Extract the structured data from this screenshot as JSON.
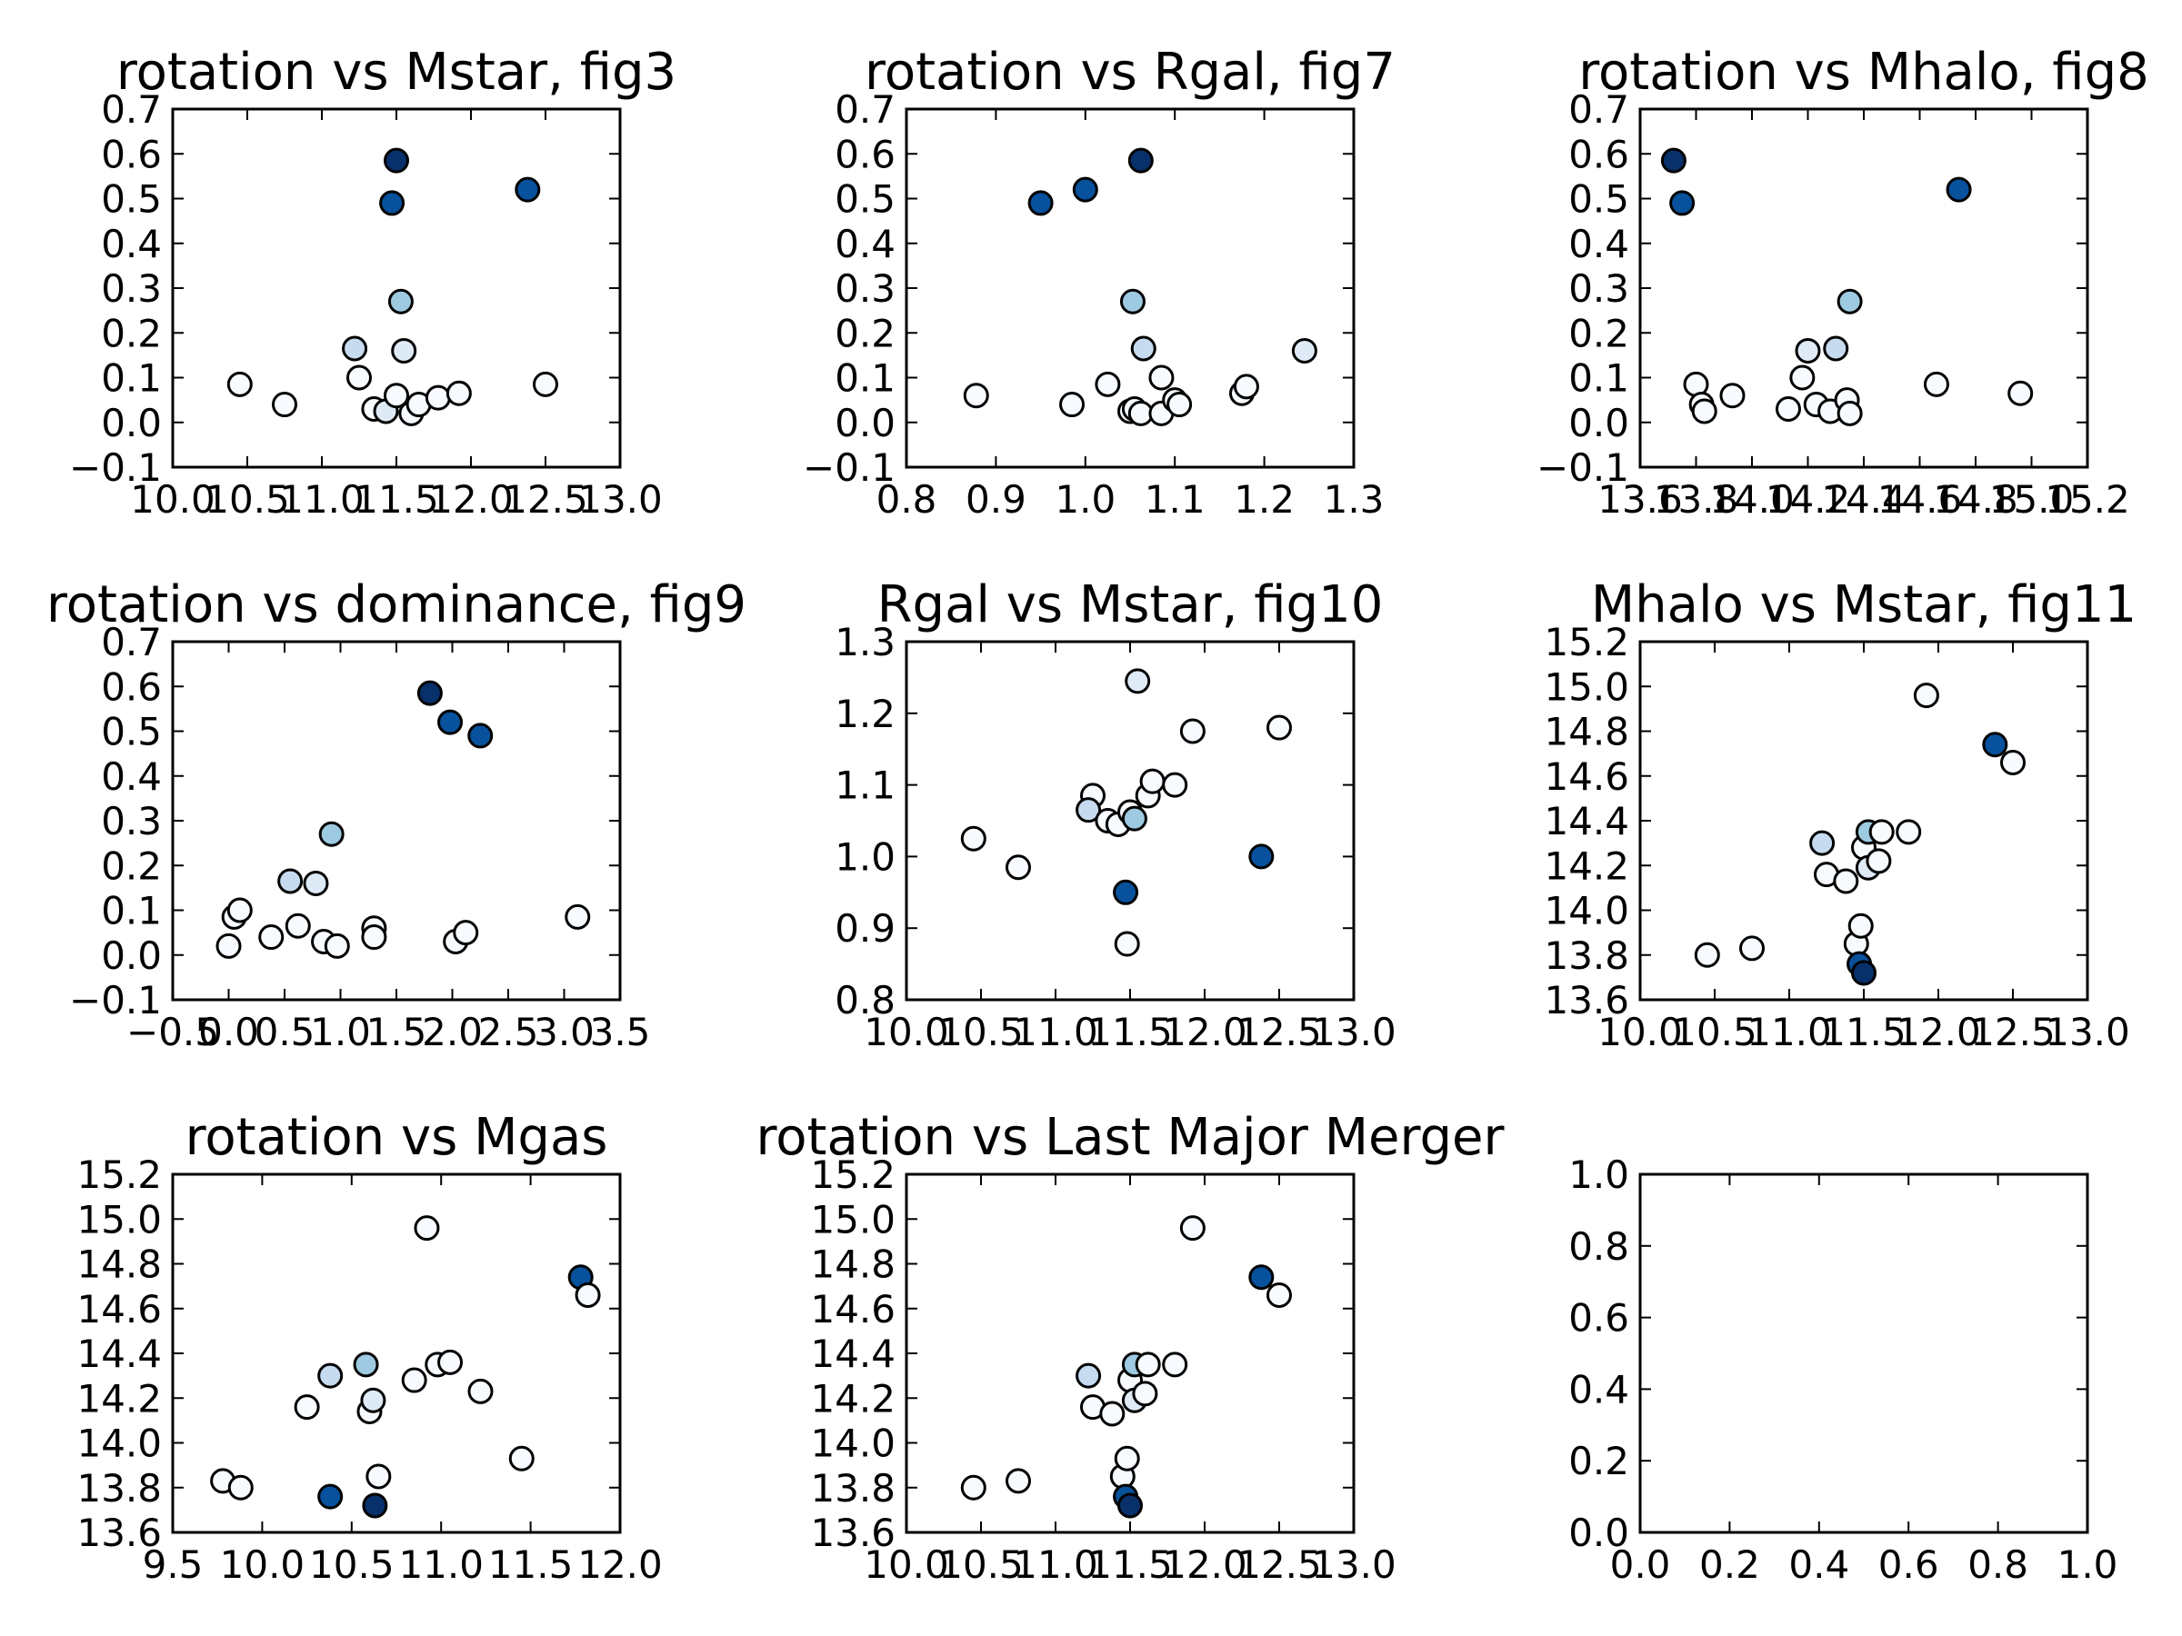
{
  "figure": {
    "background": "#ffffff",
    "marker_edge": "#000000",
    "colormap": [
      "#f7fbff",
      "#deebf7",
      "#c6dbef",
      "#9ecae1",
      "#6baed6",
      "#4292c6",
      "#2171b5",
      "#08519c",
      "#08306b"
    ]
  },
  "chart_data": [
    {
      "type": "scatter",
      "title": "rotation vs Mstar, fig3",
      "xlim": [
        10.0,
        13.0
      ],
      "ylim": [
        -0.1,
        0.7
      ],
      "xticks": [
        "10.0",
        "10.5",
        "11.0",
        "11.5",
        "12.0",
        "12.5",
        "13.0"
      ],
      "yticks": [
        "−0.1",
        "0.0",
        "0.1",
        "0.2",
        "0.3",
        "0.4",
        "0.5",
        "0.6",
        "0.7"
      ],
      "points": [
        {
          "x": 10.45,
          "y": 0.085,
          "c": 0.0
        },
        {
          "x": 10.75,
          "y": 0.04,
          "c": 0.05
        },
        {
          "x": 11.22,
          "y": 0.165,
          "c": 0.22
        },
        {
          "x": 11.25,
          "y": 0.1,
          "c": 0.05
        },
        {
          "x": 11.35,
          "y": 0.03,
          "c": 0.05
        },
        {
          "x": 11.43,
          "y": 0.025,
          "c": 0.1
        },
        {
          "x": 11.5,
          "y": 0.06,
          "c": 0.05
        },
        {
          "x": 11.55,
          "y": 0.16,
          "c": 0.15
        },
        {
          "x": 11.6,
          "y": 0.02,
          "c": 0.05
        },
        {
          "x": 11.65,
          "y": 0.04,
          "c": 0.05
        },
        {
          "x": 11.78,
          "y": 0.055,
          "c": 0.05
        },
        {
          "x": 11.92,
          "y": 0.065,
          "c": 0.05
        },
        {
          "x": 11.53,
          "y": 0.27,
          "c": 0.4
        },
        {
          "x": 11.47,
          "y": 0.49,
          "c": 0.82
        },
        {
          "x": 11.5,
          "y": 0.585,
          "c": 1.0
        },
        {
          "x": 12.38,
          "y": 0.52,
          "c": 0.9
        },
        {
          "x": 12.5,
          "y": 0.085,
          "c": 0.0
        }
      ]
    },
    {
      "type": "scatter",
      "title": "rotation vs Rgal, fig7",
      "xlim": [
        0.8,
        1.3
      ],
      "ylim": [
        -0.1,
        0.7
      ],
      "xticks": [
        "0.8",
        "0.9",
        "1.0",
        "1.1",
        "1.2",
        "1.3"
      ],
      "yticks": [
        "−0.1",
        "0.0",
        "0.1",
        "0.2",
        "0.3",
        "0.4",
        "0.5",
        "0.6",
        "0.7"
      ],
      "points": [
        {
          "x": 0.878,
          "y": 0.06,
          "c": 0.0
        },
        {
          "x": 0.985,
          "y": 0.04,
          "c": 0.0
        },
        {
          "x": 1.025,
          "y": 0.085,
          "c": 0.05
        },
        {
          "x": 1.05,
          "y": 0.025,
          "c": 0.05
        },
        {
          "x": 1.055,
          "y": 0.03,
          "c": 0.05
        },
        {
          "x": 1.062,
          "y": 0.02,
          "c": 0.05
        },
        {
          "x": 1.065,
          "y": 0.165,
          "c": 0.22
        },
        {
          "x": 1.085,
          "y": 0.1,
          "c": 0.05
        },
        {
          "x": 1.085,
          "y": 0.02,
          "c": 0.05
        },
        {
          "x": 1.1,
          "y": 0.05,
          "c": 0.05
        },
        {
          "x": 1.105,
          "y": 0.04,
          "c": 0.05
        },
        {
          "x": 1.053,
          "y": 0.27,
          "c": 0.4
        },
        {
          "x": 1.175,
          "y": 0.065,
          "c": 0.05
        },
        {
          "x": 1.18,
          "y": 0.08,
          "c": 0.05
        },
        {
          "x": 1.245,
          "y": 0.16,
          "c": 0.15
        },
        {
          "x": 0.95,
          "y": 0.49,
          "c": 0.82
        },
        {
          "x": 1.0,
          "y": 0.52,
          "c": 0.9
        },
        {
          "x": 1.062,
          "y": 0.585,
          "c": 1.0
        }
      ]
    },
    {
      "type": "scatter",
      "title": "rotation vs Mhalo, fig8",
      "xlim": [
        13.6,
        15.2
      ],
      "ylim": [
        -0.1,
        0.7
      ],
      "xticks": [
        "13.6",
        "13.8",
        "14.0",
        "14.2",
        "14.4",
        "14.6",
        "14.8",
        "15.0",
        "15.2"
      ],
      "yticks": [
        "−0.1",
        "0.0",
        "0.1",
        "0.2",
        "0.3",
        "0.4",
        "0.5",
        "0.6",
        "0.7"
      ],
      "points": [
        {
          "x": 13.72,
          "y": 0.585,
          "c": 1.0
        },
        {
          "x": 13.75,
          "y": 0.49,
          "c": 0.82
        },
        {
          "x": 13.8,
          "y": 0.085,
          "c": 0.0
        },
        {
          "x": 13.82,
          "y": 0.04,
          "c": 0.05
        },
        {
          "x": 13.83,
          "y": 0.025,
          "c": 0.05
        },
        {
          "x": 13.93,
          "y": 0.06,
          "c": 0.05
        },
        {
          "x": 14.13,
          "y": 0.03,
          "c": 0.05
        },
        {
          "x": 14.18,
          "y": 0.1,
          "c": 0.05
        },
        {
          "x": 14.2,
          "y": 0.16,
          "c": 0.15
        },
        {
          "x": 14.23,
          "y": 0.04,
          "c": 0.05
        },
        {
          "x": 14.28,
          "y": 0.025,
          "c": 0.05
        },
        {
          "x": 14.3,
          "y": 0.165,
          "c": 0.22
        },
        {
          "x": 14.34,
          "y": 0.05,
          "c": 0.05
        },
        {
          "x": 14.35,
          "y": 0.02,
          "c": 0.05
        },
        {
          "x": 14.35,
          "y": 0.27,
          "c": 0.4
        },
        {
          "x": 14.66,
          "y": 0.085,
          "c": 0.0
        },
        {
          "x": 14.74,
          "y": 0.52,
          "c": 0.9
        },
        {
          "x": 14.96,
          "y": 0.065,
          "c": 0.05
        }
      ]
    },
    {
      "type": "scatter",
      "title": "rotation vs dominance, fig9",
      "xlim": [
        -0.5,
        3.5
      ],
      "ylim": [
        -0.1,
        0.7
      ],
      "xticks": [
        "−0.5",
        "0.0",
        "0.5",
        "1.0",
        "1.5",
        "2.0",
        "2.5",
        "3.0",
        "3.5"
      ],
      "yticks": [
        "−0.1",
        "0.0",
        "0.1",
        "0.2",
        "0.3",
        "0.4",
        "0.5",
        "0.6",
        "0.7"
      ],
      "points": [
        {
          "x": 0.0,
          "y": 0.02,
          "c": 0.05
        },
        {
          "x": 0.05,
          "y": 0.085,
          "c": 0.0
        },
        {
          "x": 0.1,
          "y": 0.1,
          "c": 0.05
        },
        {
          "x": 0.38,
          "y": 0.04,
          "c": 0.05
        },
        {
          "x": 0.55,
          "y": 0.165,
          "c": 0.22
        },
        {
          "x": 0.62,
          "y": 0.065,
          "c": 0.05
        },
        {
          "x": 0.78,
          "y": 0.16,
          "c": 0.15
        },
        {
          "x": 0.85,
          "y": 0.03,
          "c": 0.05
        },
        {
          "x": 0.97,
          "y": 0.02,
          "c": 0.05
        },
        {
          "x": 0.92,
          "y": 0.27,
          "c": 0.4
        },
        {
          "x": 1.3,
          "y": 0.06,
          "c": 0.05
        },
        {
          "x": 1.3,
          "y": 0.04,
          "c": 0.05
        },
        {
          "x": 1.8,
          "y": 0.585,
          "c": 1.0
        },
        {
          "x": 1.98,
          "y": 0.52,
          "c": 0.9
        },
        {
          "x": 2.25,
          "y": 0.49,
          "c": 0.82
        },
        {
          "x": 2.03,
          "y": 0.03,
          "c": 0.05
        },
        {
          "x": 2.12,
          "y": 0.05,
          "c": 0.05
        },
        {
          "x": 3.12,
          "y": 0.085,
          "c": 0.0
        }
      ]
    },
    {
      "type": "scatter",
      "title": "Rgal vs Mstar, fig10",
      "xlim": [
        10.0,
        13.0
      ],
      "ylim": [
        0.8,
        1.3
      ],
      "xticks": [
        "10.0",
        "10.5",
        "11.0",
        "11.5",
        "12.0",
        "12.5",
        "13.0"
      ],
      "yticks": [
        "0.8",
        "0.9",
        "1.0",
        "1.1",
        "1.2",
        "1.3"
      ],
      "points": [
        {
          "x": 10.45,
          "y": 1.025,
          "c": 0.0
        },
        {
          "x": 10.75,
          "y": 0.985,
          "c": 0.05
        },
        {
          "x": 11.25,
          "y": 1.085,
          "c": 0.05
        },
        {
          "x": 11.22,
          "y": 1.065,
          "c": 0.22
        },
        {
          "x": 11.35,
          "y": 1.05,
          "c": 0.05
        },
        {
          "x": 11.42,
          "y": 1.045,
          "c": 0.05
        },
        {
          "x": 11.5,
          "y": 1.062,
          "c": 0.05
        },
        {
          "x": 11.53,
          "y": 1.053,
          "c": 0.4
        },
        {
          "x": 11.55,
          "y": 1.245,
          "c": 0.15
        },
        {
          "x": 11.62,
          "y": 1.085,
          "c": 0.05
        },
        {
          "x": 11.65,
          "y": 1.105,
          "c": 0.05
        },
        {
          "x": 11.8,
          "y": 1.1,
          "c": 0.05
        },
        {
          "x": 11.92,
          "y": 1.175,
          "c": 0.05
        },
        {
          "x": 12.5,
          "y": 1.18,
          "c": 0.0
        },
        {
          "x": 11.47,
          "y": 0.95,
          "c": 0.82
        },
        {
          "x": 11.48,
          "y": 0.878,
          "c": 0.0
        },
        {
          "x": 12.38,
          "y": 1.0,
          "c": 0.9
        }
      ]
    },
    {
      "type": "scatter",
      "title": "Mhalo vs Mstar, fig11",
      "xlim": [
        10.0,
        13.0
      ],
      "ylim": [
        13.6,
        15.2
      ],
      "xticks": [
        "10.0",
        "10.5",
        "11.0",
        "11.5",
        "12.0",
        "12.5",
        "13.0"
      ],
      "yticks": [
        "13.6",
        "13.8",
        "14.0",
        "14.2",
        "14.4",
        "14.6",
        "14.8",
        "15.0",
        "15.2"
      ],
      "points": [
        {
          "x": 10.45,
          "y": 13.8,
          "c": 0.0
        },
        {
          "x": 10.75,
          "y": 13.83,
          "c": 0.05
        },
        {
          "x": 11.22,
          "y": 14.3,
          "c": 0.22
        },
        {
          "x": 11.25,
          "y": 14.16,
          "c": 0.05
        },
        {
          "x": 11.38,
          "y": 14.13,
          "c": 0.05
        },
        {
          "x": 11.45,
          "y": 13.85,
          "c": 0.05
        },
        {
          "x": 11.48,
          "y": 13.93,
          "c": 0.05
        },
        {
          "x": 11.5,
          "y": 14.28,
          "c": 0.05
        },
        {
          "x": 11.53,
          "y": 14.19,
          "c": 0.15
        },
        {
          "x": 11.53,
          "y": 14.35,
          "c": 0.4
        },
        {
          "x": 11.6,
          "y": 14.22,
          "c": 0.05
        },
        {
          "x": 11.62,
          "y": 14.35,
          "c": 0.05
        },
        {
          "x": 11.8,
          "y": 14.35,
          "c": 0.05
        },
        {
          "x": 11.92,
          "y": 14.96,
          "c": 0.0
        },
        {
          "x": 11.47,
          "y": 13.76,
          "c": 0.82
        },
        {
          "x": 11.5,
          "y": 13.72,
          "c": 1.0
        },
        {
          "x": 12.38,
          "y": 14.74,
          "c": 0.9
        },
        {
          "x": 12.5,
          "y": 14.66,
          "c": 0.05
        }
      ]
    },
    {
      "type": "scatter",
      "title": "rotation vs Mgas",
      "xlim": [
        9.5,
        12.0
      ],
      "ylim": [
        13.6,
        15.2
      ],
      "xticks": [
        "9.5",
        "10.0",
        "10.5",
        "11.0",
        "11.5",
        "12.0"
      ],
      "yticks": [
        "13.6",
        "13.8",
        "14.0",
        "14.2",
        "14.4",
        "14.6",
        "14.8",
        "15.0",
        "15.2"
      ],
      "points": [
        {
          "x": 9.78,
          "y": 13.83,
          "c": 0.05
        },
        {
          "x": 9.88,
          "y": 13.8,
          "c": 0.0
        },
        {
          "x": 10.25,
          "y": 14.16,
          "c": 0.05
        },
        {
          "x": 10.38,
          "y": 14.3,
          "c": 0.22
        },
        {
          "x": 10.38,
          "y": 13.76,
          "c": 0.82
        },
        {
          "x": 10.6,
          "y": 14.14,
          "c": 0.05
        },
        {
          "x": 10.58,
          "y": 14.35,
          "c": 0.4
        },
        {
          "x": 10.62,
          "y": 14.19,
          "c": 0.15
        },
        {
          "x": 10.63,
          "y": 13.72,
          "c": 1.0
        },
        {
          "x": 10.65,
          "y": 13.85,
          "c": 0.05
        },
        {
          "x": 10.85,
          "y": 14.28,
          "c": 0.05
        },
        {
          "x": 10.92,
          "y": 14.96,
          "c": 0.0
        },
        {
          "x": 10.98,
          "y": 14.35,
          "c": 0.05
        },
        {
          "x": 11.05,
          "y": 14.36,
          "c": 0.05
        },
        {
          "x": 11.22,
          "y": 14.23,
          "c": 0.05
        },
        {
          "x": 11.45,
          "y": 13.93,
          "c": 0.05
        },
        {
          "x": 11.78,
          "y": 14.74,
          "c": 0.9
        },
        {
          "x": 11.82,
          "y": 14.66,
          "c": 0.05
        }
      ]
    },
    {
      "type": "scatter",
      "title": "rotation vs Last Major Merger",
      "xlim": [
        10.0,
        13.0
      ],
      "ylim": [
        13.6,
        15.2
      ],
      "xticks": [
        "10.0",
        "10.5",
        "11.0",
        "11.5",
        "12.0",
        "12.5",
        "13.0"
      ],
      "yticks": [
        "13.6",
        "13.8",
        "14.0",
        "14.2",
        "14.4",
        "14.6",
        "14.8",
        "15.0",
        "15.2"
      ],
      "points": [
        {
          "x": 10.45,
          "y": 13.8,
          "c": 0.0
        },
        {
          "x": 10.75,
          "y": 13.83,
          "c": 0.05
        },
        {
          "x": 11.22,
          "y": 14.3,
          "c": 0.22
        },
        {
          "x": 11.25,
          "y": 14.16,
          "c": 0.05
        },
        {
          "x": 11.38,
          "y": 14.13,
          "c": 0.05
        },
        {
          "x": 11.45,
          "y": 13.85,
          "c": 0.05
        },
        {
          "x": 11.48,
          "y": 13.93,
          "c": 0.05
        },
        {
          "x": 11.5,
          "y": 14.28,
          "c": 0.05
        },
        {
          "x": 11.53,
          "y": 14.19,
          "c": 0.15
        },
        {
          "x": 11.53,
          "y": 14.35,
          "c": 0.4
        },
        {
          "x": 11.6,
          "y": 14.22,
          "c": 0.05
        },
        {
          "x": 11.62,
          "y": 14.35,
          "c": 0.05
        },
        {
          "x": 11.8,
          "y": 14.35,
          "c": 0.05
        },
        {
          "x": 11.92,
          "y": 14.96,
          "c": 0.0
        },
        {
          "x": 11.47,
          "y": 13.76,
          "c": 0.82
        },
        {
          "x": 11.5,
          "y": 13.72,
          "c": 1.0
        },
        {
          "x": 12.38,
          "y": 14.74,
          "c": 0.9
        },
        {
          "x": 12.5,
          "y": 14.66,
          "c": 0.05
        }
      ]
    },
    {
      "type": "scatter",
      "title": "",
      "xlim": [
        0.0,
        1.0
      ],
      "ylim": [
        0.0,
        1.0
      ],
      "xticks": [
        "0.0",
        "0.2",
        "0.4",
        "0.6",
        "0.8",
        "1.0"
      ],
      "yticks": [
        "0.0",
        "0.2",
        "0.4",
        "0.6",
        "0.8",
        "1.0"
      ],
      "points": []
    }
  ]
}
